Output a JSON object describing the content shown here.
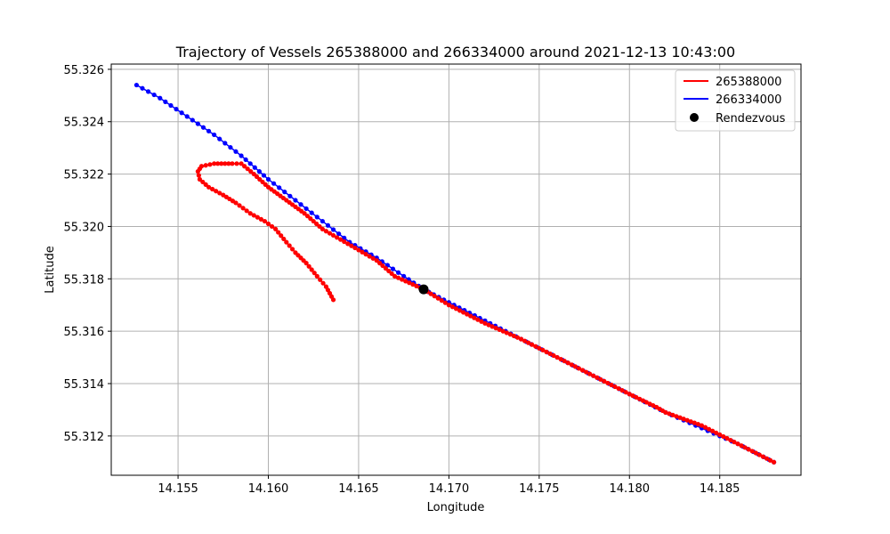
{
  "chart_data": {
    "type": "line",
    "title": "Trajectory of Vessels 265388000 and 266334000 around 2021-12-13 10:43:00",
    "xlabel": "Longitude",
    "ylabel": "Latitude",
    "xlim": [
      14.1513,
      14.1895
    ],
    "ylim": [
      55.3105,
      55.3262
    ],
    "x_ticks": [
      "14.155",
      "14.160",
      "14.165",
      "14.170",
      "14.175",
      "14.180",
      "14.185"
    ],
    "y_ticks": [
      "55.312",
      "55.314",
      "55.316",
      "55.318",
      "55.320",
      "55.322",
      "55.324",
      "55.326"
    ],
    "grid": true,
    "legend_position": "top-right",
    "series": [
      {
        "name": "265388000",
        "color": "#ff0000",
        "marker": "dot",
        "points": [
          [
            14.1636,
            55.3172
          ],
          [
            14.1632,
            55.3177
          ],
          [
            14.1627,
            55.3181
          ],
          [
            14.1621,
            55.3186
          ],
          [
            14.1615,
            55.319
          ],
          [
            14.161,
            55.3194
          ],
          [
            14.1604,
            55.3199
          ],
          [
            14.1598,
            55.3202
          ],
          [
            14.159,
            55.3205
          ],
          [
            14.1582,
            55.3209
          ],
          [
            14.1575,
            55.3212
          ],
          [
            14.1567,
            55.3215
          ],
          [
            14.1562,
            55.3218
          ],
          [
            14.1561,
            55.3221
          ],
          [
            14.1563,
            55.3223
          ],
          [
            14.157,
            55.3224
          ],
          [
            14.158,
            55.3224
          ],
          [
            14.1585,
            55.3224
          ],
          [
            14.1592,
            55.322
          ],
          [
            14.16,
            55.3215
          ],
          [
            14.161,
            55.321
          ],
          [
            14.162,
            55.3205
          ],
          [
            14.163,
            55.3199
          ],
          [
            14.164,
            55.3195
          ],
          [
            14.165,
            55.3191
          ],
          [
            14.166,
            55.3187
          ],
          [
            14.167,
            55.3181
          ],
          [
            14.1686,
            55.3176
          ],
          [
            14.17,
            55.317
          ],
          [
            14.172,
            55.3163
          ],
          [
            14.174,
            55.3157
          ],
          [
            14.176,
            55.315
          ],
          [
            14.178,
            55.3143
          ],
          [
            14.18,
            55.3136
          ],
          [
            14.1815,
            55.3131
          ],
          [
            14.182,
            55.3129
          ],
          [
            14.184,
            55.3124
          ],
          [
            14.186,
            55.3117
          ],
          [
            14.188,
            55.311
          ]
        ]
      },
      {
        "name": "266334000",
        "color": "#0000ff",
        "marker": "dot",
        "points": [
          [
            14.1527,
            55.3254
          ],
          [
            14.154,
            55.3249
          ],
          [
            14.1555,
            55.3242
          ],
          [
            14.157,
            55.3235
          ],
          [
            14.1585,
            55.3227
          ],
          [
            14.16,
            55.3218
          ],
          [
            14.1615,
            55.321
          ],
          [
            14.163,
            55.3202
          ],
          [
            14.1645,
            55.3194
          ],
          [
            14.166,
            55.3188
          ],
          [
            14.1675,
            55.3181
          ],
          [
            14.1686,
            55.3176
          ],
          [
            14.17,
            55.3171
          ],
          [
            14.172,
            55.3164
          ],
          [
            14.174,
            55.3157
          ],
          [
            14.176,
            55.315
          ],
          [
            14.178,
            55.3143
          ],
          [
            14.18,
            55.3136
          ],
          [
            14.182,
            55.3129
          ],
          [
            14.184,
            55.3123
          ],
          [
            14.186,
            55.3117
          ],
          [
            14.188,
            55.311
          ]
        ]
      }
    ],
    "rendezvous": {
      "name": "Rendezvous",
      "color": "#000000",
      "point": [
        14.1686,
        55.3176
      ]
    }
  }
}
